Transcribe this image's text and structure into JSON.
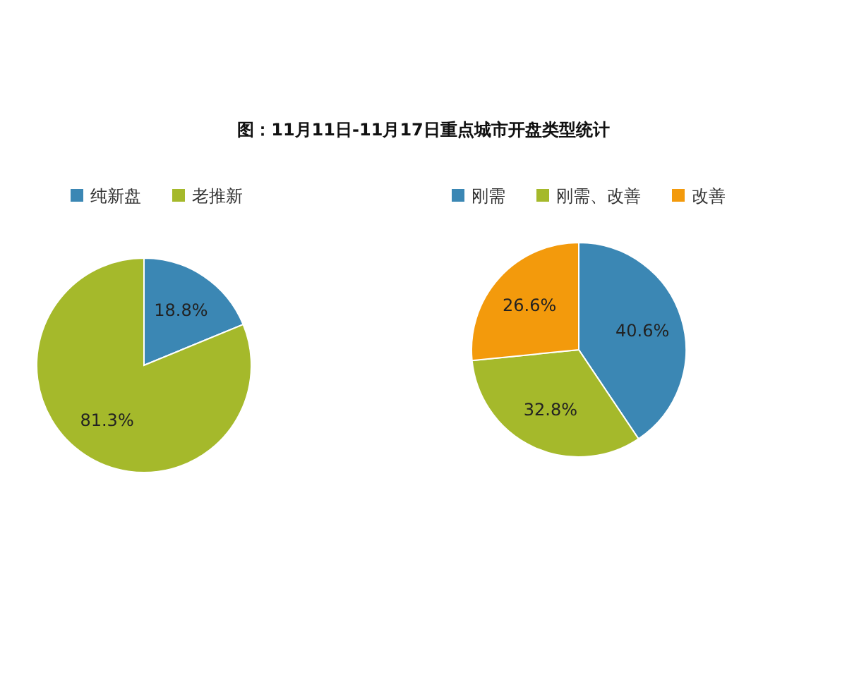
{
  "chart_data": [
    {
      "type": "pie",
      "title": "图：11月11日-11月17日重点城市开盘类型统计",
      "categories": [
        "纯新盘",
        "老推新"
      ],
      "values": [
        18.8,
        81.3
      ],
      "value_labels": [
        "18.8%",
        "81.3%"
      ],
      "colors": [
        "#3b87b4",
        "#a5b92b"
      ],
      "legend": "top"
    },
    {
      "type": "pie",
      "categories": [
        "刚需",
        "刚需、改善",
        "改善"
      ],
      "values": [
        40.6,
        32.8,
        26.6
      ],
      "value_labels": [
        "40.6%",
        "32.8%",
        "26.6%"
      ],
      "colors": [
        "#3b87b4",
        "#a5b92b",
        "#f39a0c"
      ],
      "legend": "top"
    }
  ]
}
